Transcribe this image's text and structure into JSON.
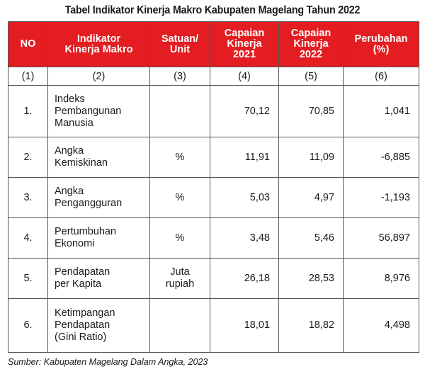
{
  "title": "Tabel Indikator Kinerja Makro Kabupaten Magelang Tahun 2022",
  "table": {
    "headers": [
      "NO",
      "Indikator\nKinerja Makro",
      "Satuan/\nUnit",
      "Capaian\nKinerja\n2021",
      "Capaian\nKinerja\n2022",
      "Perubahan\n(%)"
    ],
    "column_numbers": [
      "(1)",
      "(2)",
      "(3)",
      "(4)",
      "(5)",
      "(6)"
    ],
    "rows": [
      {
        "no": "1.",
        "indicator": "Indeks\nPembangunan\nManusia",
        "unit": "",
        "y2021": "70,12",
        "y2022": "70,85",
        "change": "1,041"
      },
      {
        "no": "2.",
        "indicator": "Angka\nKemiskinan",
        "unit": "%",
        "y2021": "11,91",
        "y2022": "11,09",
        "change": "-6,885"
      },
      {
        "no": "3.",
        "indicator": "Angka\nPengangguran",
        "unit": "%",
        "y2021": "5,03",
        "y2022": "4,97",
        "change": "-1,193"
      },
      {
        "no": "4.",
        "indicator": "Pertumbuhan\nEkonomi",
        "unit": "%",
        "y2021": "3,48",
        "y2022": "5,46",
        "change": "56,897"
      },
      {
        "no": "5.",
        "indicator": "Pendapatan\nper Kapita",
        "unit": "Juta\nrupiah",
        "y2021": "26,18",
        "y2022": "28,53",
        "change": "8,976"
      },
      {
        "no": "6.",
        "indicator": "Ketimpangan\nPendapatan\n(Gini Ratio)",
        "unit": "",
        "y2021": "18,01",
        "y2022": "18,82",
        "change": "4,498"
      }
    ]
  },
  "source": "Sumber: Kabupaten Magelang Dalam Angka, 2023",
  "colors": {
    "header_bg": "#e31d21",
    "header_text": "#ffffff",
    "border": "#555555"
  }
}
